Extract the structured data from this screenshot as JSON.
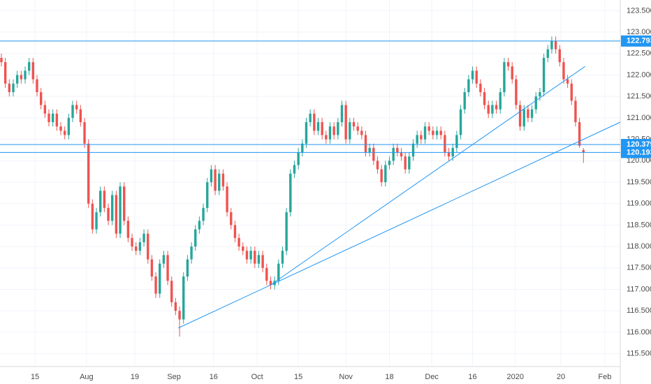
{
  "chart_data": {
    "type": "candlestick",
    "up_color": "#26a69a",
    "down_color": "#ef5350",
    "line_color": "#2196f3",
    "grid": true,
    "xlim": [
      -0.35,
      156.3
    ],
    "ylim": [
      115.2,
      123.75
    ],
    "yticks": [
      {
        "value": 123.5,
        "label": "123.500"
      },
      {
        "value": 123,
        "label": "123.000"
      },
      {
        "value": 122.5,
        "label": "122.500"
      },
      {
        "value": 122,
        "label": "122.000"
      },
      {
        "value": 121.5,
        "label": "121.500"
      },
      {
        "value": 121,
        "label": "121.000"
      },
      {
        "value": 120.5,
        "label": "120.500"
      },
      {
        "value": 120,
        "label": "120.000"
      },
      {
        "value": 119.5,
        "label": "119.500"
      },
      {
        "value": 119,
        "label": "119.000"
      },
      {
        "value": 118.5,
        "label": "118.500"
      },
      {
        "value": 118,
        "label": "118.000"
      },
      {
        "value": 117.5,
        "label": "117.500"
      },
      {
        "value": 117,
        "label": "117.000"
      },
      {
        "value": 116.5,
        "label": "116.500"
      },
      {
        "value": 116,
        "label": "116.000"
      },
      {
        "value": 115.5,
        "label": "115.500"
      }
    ],
    "xticks": [
      {
        "value": 8.5,
        "label": "15"
      },
      {
        "value": 21.5,
        "label": "Aug"
      },
      {
        "value": 33.7,
        "label": "19"
      },
      {
        "value": 43.6,
        "label": "Sep"
      },
      {
        "value": 53.6,
        "label": "16"
      },
      {
        "value": 64.6,
        "label": "Oct"
      },
      {
        "value": 75,
        "label": "15"
      },
      {
        "value": 87,
        "label": "Nov"
      },
      {
        "value": 98,
        "label": "18"
      },
      {
        "value": 108.7,
        "label": "Dec"
      },
      {
        "value": 119,
        "label": "16"
      },
      {
        "value": 129.8,
        "label": "2020"
      },
      {
        "value": 141.3,
        "label": "20"
      },
      {
        "value": 152.4,
        "label": "Feb"
      }
    ],
    "hlines": [
      122.793,
      120.379,
      120.193
    ],
    "trendlines": [
      {
        "x": [
          44.7,
          156.3
        ],
        "y": [
          116.1,
          120.9
        ]
      },
      {
        "x": [
          68.4,
          147.4
        ],
        "y": [
          117.13,
          122.2
        ]
      }
    ],
    "open": [
      122.4,
      122.3,
      121.8,
      121.6,
      121.8,
      122.0,
      121.9,
      122.1,
      122.3,
      121.9,
      121.6,
      121.3,
      121.1,
      120.9,
      121.1,
      120.8,
      120.7,
      120.6,
      121.0,
      121.3,
      121.2,
      120.9,
      120.4,
      119.0,
      118.4,
      118.8,
      119.3,
      118.9,
      118.6,
      119.2,
      118.3,
      119.4,
      118.6,
      118.2,
      118.0,
      117.9,
      118.1,
      118.3,
      117.7,
      117.3,
      116.9,
      117.6,
      117.8,
      117.2,
      116.7,
      116.5,
      116.3,
      117.3,
      117.7,
      118.0,
      118.4,
      118.6,
      118.9,
      119.5,
      119.8,
      119.3,
      119.7,
      119.4,
      118.8,
      118.5,
      118.2,
      118.0,
      117.9,
      117.7,
      117.9,
      117.6,
      117.8,
      117.5,
      117.2,
      117.1,
      117.2,
      117.6,
      117.9,
      118.8,
      119.7,
      119.9,
      120.2,
      120.4,
      120.9,
      121.1,
      120.7,
      120.9,
      120.6,
      120.5,
      120.8,
      120.6,
      120.9,
      121.3,
      120.5,
      120.9,
      120.8,
      120.7,
      120.6,
      120.2,
      120.3,
      120.0,
      119.8,
      119.5,
      119.9,
      120.0,
      120.3,
      120.2,
      120.1,
      119.8,
      120.1,
      120.4,
      120.6,
      120.5,
      120.8,
      120.7,
      120.6,
      120.7,
      120.6,
      120.2,
      120.1,
      120.3,
      120.6,
      121.2,
      121.6,
      121.9,
      122.1,
      121.8,
      121.6,
      121.3,
      121.1,
      121.3,
      121.2,
      121.6,
      122.3,
      122.2,
      121.9,
      121.3,
      120.8,
      121.2,
      121.0,
      121.2,
      121.5,
      121.6,
      122.4,
      122.6,
      122.8,
      122.6,
      122.3,
      121.9,
      121.8,
      121.4,
      120.9,
      120.25
    ],
    "high": [
      122.5,
      122.4,
      121.9,
      121.9,
      122.1,
      122.1,
      122.2,
      122.4,
      122.4,
      122.0,
      121.7,
      121.4,
      121.2,
      121.2,
      121.2,
      120.9,
      120.8,
      121.1,
      121.4,
      121.4,
      121.3,
      121.0,
      120.5,
      119.1,
      118.9,
      119.4,
      119.4,
      119.0,
      119.3,
      119.3,
      119.5,
      119.5,
      118.7,
      118.3,
      118.1,
      118.2,
      118.4,
      118.4,
      117.8,
      117.4,
      117.7,
      117.9,
      117.9,
      117.3,
      116.8,
      116.6,
      117.4,
      117.8,
      118.1,
      118.5,
      118.7,
      119.0,
      119.6,
      119.9,
      119.9,
      119.8,
      119.8,
      119.5,
      118.9,
      118.6,
      118.3,
      118.1,
      118.0,
      118.0,
      118.0,
      117.9,
      117.9,
      117.6,
      117.3,
      117.3,
      117.7,
      118.0,
      118.9,
      119.8,
      120.0,
      120.3,
      120.5,
      121.0,
      121.2,
      121.2,
      121.0,
      121.0,
      120.7,
      120.9,
      120.9,
      121.0,
      121.4,
      121.4,
      121.0,
      121.0,
      120.9,
      120.8,
      120.7,
      120.4,
      120.4,
      120.1,
      119.9,
      120.0,
      120.1,
      120.4,
      120.4,
      120.3,
      120.2,
      120.2,
      120.5,
      120.7,
      120.7,
      120.9,
      120.9,
      120.8,
      120.8,
      120.8,
      120.7,
      120.3,
      120.4,
      120.7,
      121.3,
      121.7,
      122.0,
      122.2,
      122.2,
      121.9,
      121.7,
      121.4,
      121.4,
      121.4,
      121.7,
      122.4,
      122.4,
      122.3,
      122.0,
      121.4,
      121.3,
      121.3,
      121.3,
      121.6,
      121.7,
      122.5,
      122.7,
      122.9,
      122.9,
      122.7,
      122.4,
      122.0,
      121.9,
      121.5,
      121.0,
      120.3
    ],
    "low": [
      122.2,
      121.7,
      121.5,
      121.5,
      121.7,
      121.8,
      121.8,
      122.0,
      121.8,
      121.5,
      121.2,
      121.0,
      120.8,
      120.8,
      120.7,
      120.6,
      120.5,
      120.5,
      120.9,
      121.1,
      120.8,
      120.3,
      118.9,
      118.3,
      118.3,
      118.7,
      118.8,
      118.5,
      118.5,
      118.2,
      118.2,
      118.5,
      118.1,
      117.9,
      117.8,
      117.8,
      118.0,
      117.6,
      117.2,
      116.8,
      116.8,
      117.5,
      117.1,
      116.6,
      116.4,
      115.9,
      116.2,
      117.2,
      117.6,
      117.9,
      118.3,
      118.5,
      118.8,
      119.4,
      119.2,
      119.2,
      119.3,
      118.7,
      118.4,
      118.1,
      117.9,
      117.8,
      117.6,
      117.6,
      117.5,
      117.5,
      117.4,
      117.1,
      117.0,
      117.0,
      117.1,
      117.5,
      117.8,
      118.7,
      119.6,
      119.8,
      120.1,
      120.3,
      120.8,
      120.6,
      120.6,
      120.5,
      120.4,
      120.4,
      120.5,
      120.5,
      120.8,
      120.4,
      120.4,
      120.7,
      120.6,
      120.5,
      120.1,
      120.1,
      119.9,
      119.7,
      119.4,
      119.4,
      119.8,
      119.9,
      120.1,
      120.0,
      119.7,
      119.7,
      120.0,
      120.3,
      120.4,
      120.4,
      120.6,
      120.5,
      120.5,
      120.5,
      120.1,
      120.0,
      120.0,
      120.2,
      120.5,
      121.1,
      121.5,
      121.8,
      121.7,
      121.5,
      121.2,
      121.0,
      121.0,
      121.1,
      121.1,
      121.5,
      122.1,
      121.8,
      121.2,
      120.7,
      120.7,
      120.9,
      120.9,
      121.1,
      121.4,
      121.5,
      122.3,
      122.5,
      122.5,
      122.2,
      121.8,
      121.7,
      121.3,
      120.8,
      120.3,
      119.95
    ],
    "close": [
      122.3,
      121.8,
      121.6,
      121.8,
      122.0,
      121.9,
      122.1,
      122.3,
      121.9,
      121.6,
      121.3,
      121.1,
      120.9,
      121.1,
      120.8,
      120.7,
      120.6,
      121.0,
      121.3,
      121.2,
      120.9,
      120.4,
      119.0,
      118.4,
      118.8,
      119.3,
      118.9,
      118.6,
      119.2,
      118.3,
      119.4,
      118.6,
      118.2,
      118.0,
      117.9,
      118.1,
      118.3,
      117.7,
      117.3,
      116.9,
      117.6,
      117.8,
      117.2,
      116.7,
      116.5,
      116.3,
      117.3,
      117.7,
      118.0,
      118.4,
      118.6,
      118.9,
      119.5,
      119.8,
      119.3,
      119.7,
      119.4,
      118.8,
      118.5,
      118.2,
      118.0,
      117.9,
      117.7,
      117.9,
      117.6,
      117.8,
      117.5,
      117.2,
      117.1,
      117.2,
      117.6,
      117.9,
      118.8,
      119.7,
      119.9,
      120.2,
      120.4,
      120.9,
      121.1,
      120.7,
      120.9,
      120.6,
      120.5,
      120.8,
      120.6,
      120.9,
      121.3,
      120.5,
      120.9,
      120.8,
      120.7,
      120.6,
      120.2,
      120.3,
      120.0,
      119.8,
      119.5,
      119.9,
      120.0,
      120.3,
      120.2,
      120.1,
      119.8,
      120.1,
      120.4,
      120.6,
      120.5,
      120.8,
      120.7,
      120.6,
      120.7,
      120.6,
      120.2,
      120.1,
      120.3,
      120.6,
      121.2,
      121.6,
      121.9,
      122.1,
      121.8,
      121.6,
      121.3,
      121.1,
      121.3,
      121.2,
      121.6,
      122.3,
      122.2,
      121.9,
      121.3,
      120.8,
      121.2,
      121.0,
      121.2,
      121.5,
      121.6,
      122.4,
      122.6,
      122.8,
      122.6,
      122.3,
      121.9,
      121.8,
      121.4,
      120.9,
      120.35,
      120.19
    ]
  }
}
